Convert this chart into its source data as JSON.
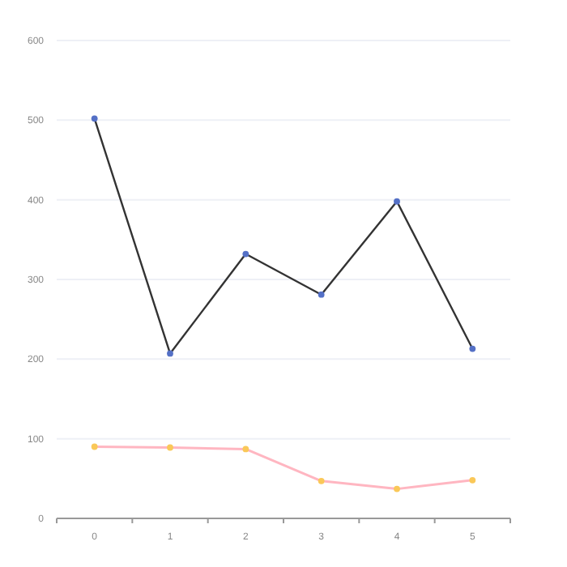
{
  "chart_data": {
    "type": "line",
    "categories": [
      "0",
      "1",
      "2",
      "3",
      "4",
      "5"
    ],
    "ylim": [
      0,
      600
    ],
    "yticks": [
      0,
      100,
      200,
      300,
      400,
      500,
      600
    ],
    "grid": "y",
    "marker": "circle",
    "series": [
      {
        "color": "#333333",
        "values": [
          502,
          207,
          332,
          281,
          398,
          213
        ]
      },
      {
        "color": "#ffb6c1",
        "values": [
          90,
          89,
          87,
          47,
          37,
          48
        ]
      }
    ]
  }
}
